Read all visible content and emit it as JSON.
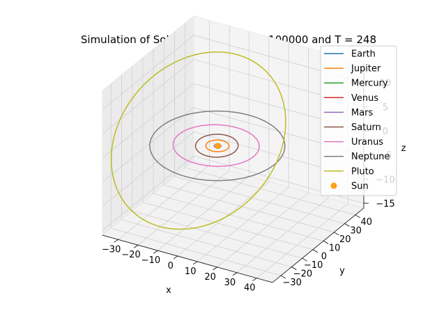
{
  "chart_data": {
    "type": "line3d",
    "title": "Simulation of Solarsystem with n = 100000 and T = 248",
    "xlabel": "x",
    "ylabel": "y",
    "zlabel": "z",
    "xlim": [
      -38,
      48
    ],
    "ylim": [
      -38,
      48
    ],
    "zlim": [
      -16,
      14
    ],
    "x_ticks": [
      -30,
      -20,
      -10,
      0,
      10,
      20,
      30,
      40
    ],
    "x_tick_labels": [
      "−30",
      "−20",
      "−10",
      "0",
      "10",
      "20",
      "30",
      "40"
    ],
    "y_ticks": [
      -30,
      -20,
      -10,
      0,
      10,
      20,
      30,
      40
    ],
    "y_tick_labels": [
      "−30",
      "−20",
      "−10",
      "0",
      "10",
      "20",
      "30",
      "40"
    ],
    "z_ticks": [
      -15,
      -10,
      -5,
      0,
      5,
      10
    ],
    "z_tick_labels": [
      "−15",
      "−10",
      "−5",
      "0",
      "5",
      "10"
    ],
    "grid": true,
    "legend_position": "upper-right",
    "series": [
      {
        "name": "Earth",
        "color": "#1f77b4",
        "kind": "orbit",
        "semi_major_axis_au": 1.0,
        "eccentricity": 0.017,
        "inclination_deg": 0.0
      },
      {
        "name": "Jupiter",
        "color": "#ff7f0e",
        "kind": "orbit",
        "semi_major_axis_au": 5.2,
        "eccentricity": 0.049,
        "inclination_deg": 1.3
      },
      {
        "name": "Mercury",
        "color": "#2ca02c",
        "kind": "orbit",
        "semi_major_axis_au": 0.39,
        "eccentricity": 0.206,
        "inclination_deg": 7.0
      },
      {
        "name": "Venus",
        "color": "#d62728",
        "kind": "orbit",
        "semi_major_axis_au": 0.72,
        "eccentricity": 0.007,
        "inclination_deg": 3.4
      },
      {
        "name": "Mars",
        "color": "#9467bd",
        "kind": "orbit",
        "semi_major_axis_au": 1.52,
        "eccentricity": 0.093,
        "inclination_deg": 1.85
      },
      {
        "name": "Saturn",
        "color": "#8c564b",
        "kind": "orbit",
        "semi_major_axis_au": 9.5,
        "eccentricity": 0.057,
        "inclination_deg": 2.5
      },
      {
        "name": "Uranus",
        "color": "#e377c2",
        "kind": "orbit",
        "semi_major_axis_au": 19.2,
        "eccentricity": 0.046,
        "inclination_deg": 0.8
      },
      {
        "name": "Neptune",
        "color": "#7f7f7f",
        "kind": "orbit",
        "semi_major_axis_au": 30.1,
        "eccentricity": 0.01,
        "inclination_deg": 1.8
      },
      {
        "name": "Pluto",
        "color": "#bcbd22",
        "kind": "orbit",
        "semi_major_axis_au": 39.5,
        "eccentricity": 0.249,
        "inclination_deg": 17.1
      },
      {
        "name": "Sun",
        "color": "#ff9f1a",
        "kind": "point",
        "x": 0,
        "y": 0,
        "z": 0
      }
    ]
  }
}
